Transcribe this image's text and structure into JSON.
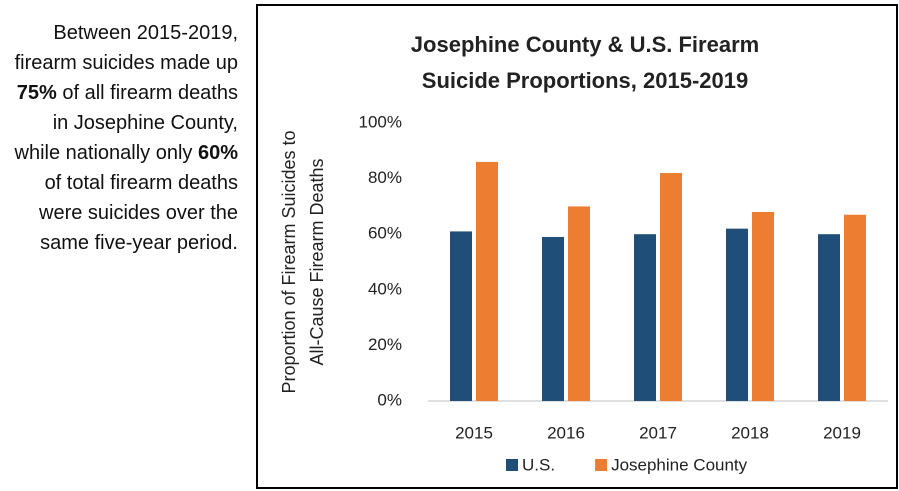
{
  "sidebar": {
    "parts": [
      "Between 2015-2019, firearm suicides made up ",
      "75%",
      " of all firearm deaths in Josephine County, while nationally only ",
      "60%",
      " of total firearm deaths were suicides over the same five-year period."
    ]
  },
  "chart_data": {
    "type": "bar",
    "title": [
      "Josephine County & U.S. Firearm",
      "Suicide Proportions, 2015-2019"
    ],
    "y_label": [
      "Proportion of Firearm Suicides to",
      "All-Cause Firearm Deaths"
    ],
    "categories": [
      "2015",
      "2016",
      "2017",
      "2018",
      "2019"
    ],
    "series": [
      {
        "name": "U.S.",
        "color": "#1f4e79",
        "values": [
          61,
          59,
          60,
          62,
          60
        ]
      },
      {
        "name": "Josephine County",
        "color": "#ed7d31",
        "values": [
          86,
          70,
          82,
          68,
          67
        ]
      }
    ],
    "ylim": [
      0,
      100
    ],
    "yticks": [
      {
        "value": 0,
        "label": "0%"
      },
      {
        "value": 20,
        "label": "20%"
      },
      {
        "value": 40,
        "label": "40%"
      },
      {
        "value": 60,
        "label": "60%"
      },
      {
        "value": 80,
        "label": "80%"
      },
      {
        "value": 100,
        "label": "100%"
      }
    ],
    "grid": false,
    "legend": "bottom"
  }
}
